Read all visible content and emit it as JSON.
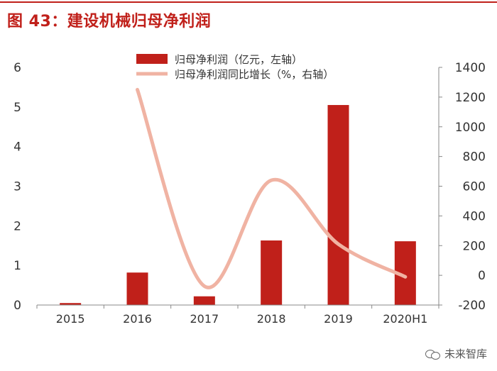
{
  "figure_title": "图 43：建设机械归母净利润",
  "watermark": "未来智库",
  "chart_data": {
    "type": "bar+line",
    "categories": [
      "2015",
      "2016",
      "2017",
      "2018",
      "2019",
      "2020H1"
    ],
    "series": [
      {
        "name": "归母净利润（亿元，左轴）",
        "type": "bar",
        "axis": "left",
        "color": "#c0201a",
        "values": [
          0.05,
          0.82,
          0.22,
          1.63,
          5.05,
          1.61
        ]
      },
      {
        "name": "归母净利润同比增长（%，右轴）",
        "type": "line",
        "axis": "right",
        "color": "#f0b3a3",
        "smooth": true,
        "values": [
          null,
          1250,
          -73,
          640,
          210,
          -10
        ]
      }
    ],
    "left_axis": {
      "min": 0,
      "max": 6,
      "ticks": [
        "0",
        "1",
        "2",
        "3",
        "4",
        "5",
        "6"
      ]
    },
    "right_axis": {
      "min": -200,
      "max": 1400,
      "ticks": [
        "-200",
        "0",
        "200",
        "400",
        "600",
        "800",
        "1000",
        "1200",
        "1400"
      ]
    },
    "legend_position": "top-center"
  }
}
